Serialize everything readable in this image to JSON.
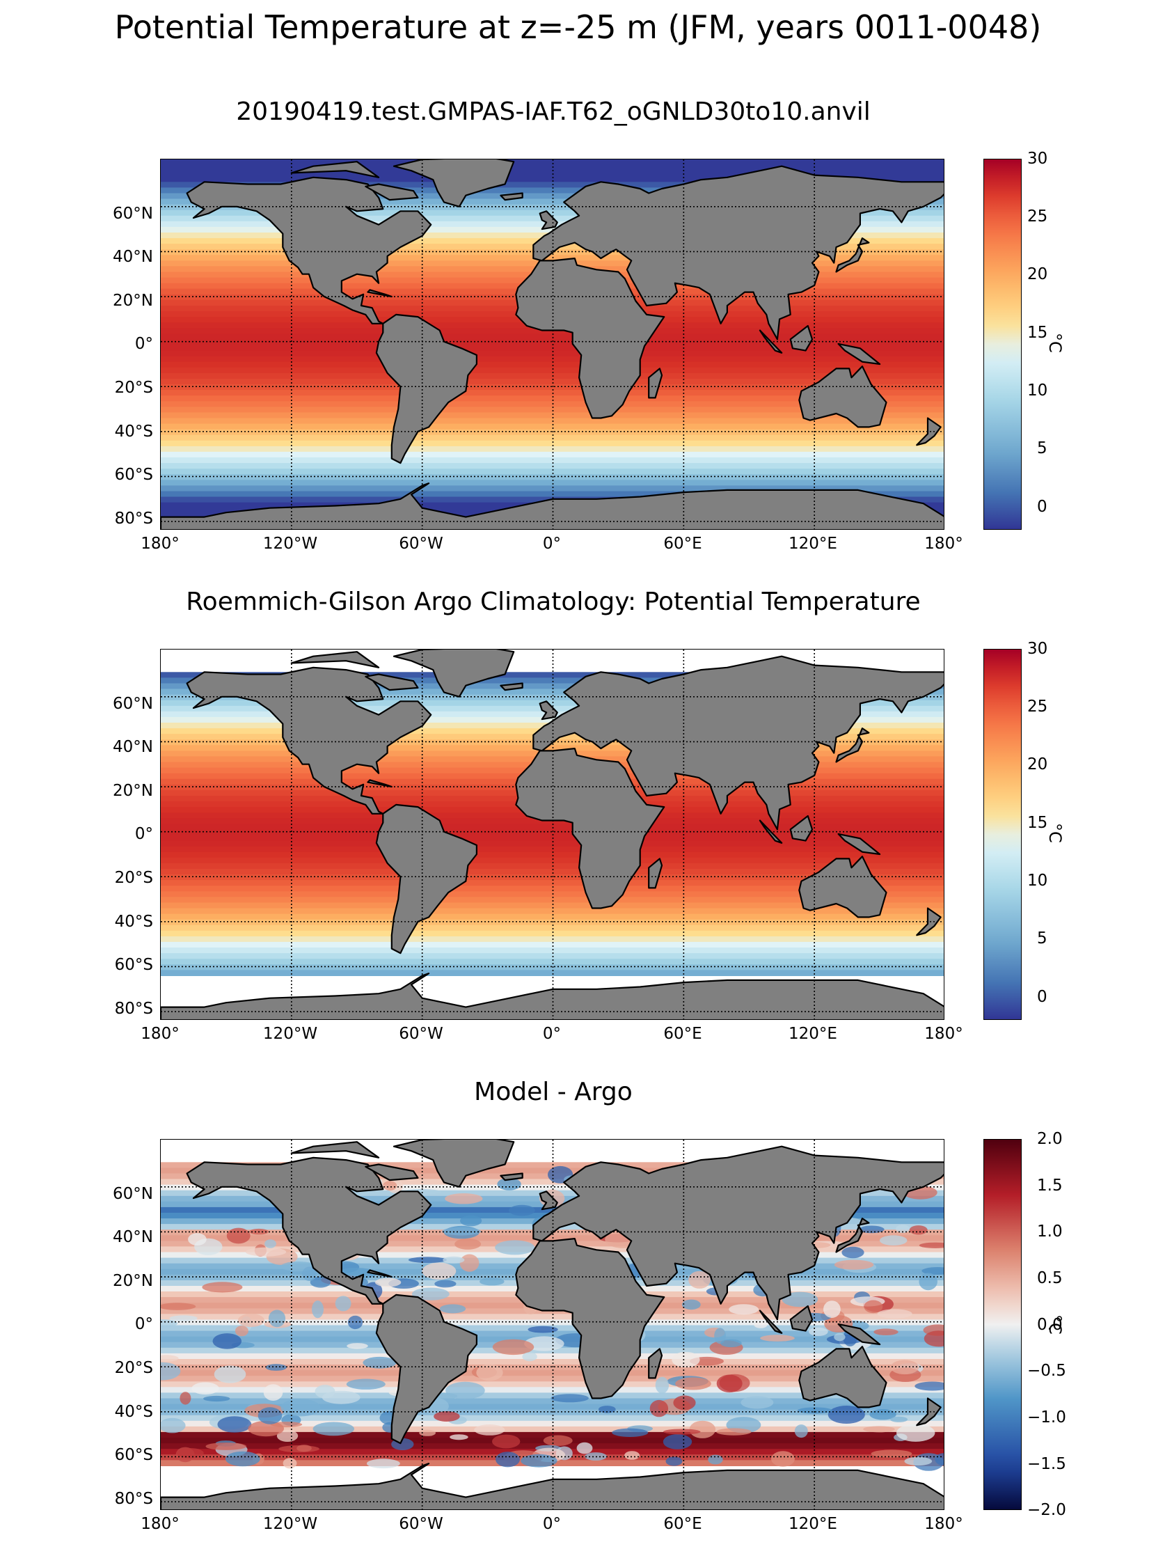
{
  "figure": {
    "suptitle": "Potential Temperature at z=-25 m (JFM, years 0011-0048)"
  },
  "panels": [
    {
      "title": "20190419.test.GMPAS-IAF.T62_oGNLD30to10.anvil",
      "colorbar": {
        "ticks": [
          "30",
          "25",
          "20",
          "15",
          "10",
          "5",
          "0"
        ],
        "label": "°C",
        "min": -2,
        "max": 30
      },
      "field": "model"
    },
    {
      "title": "Roemmich-Gilson Argo Climatology: Potential Temperature",
      "colorbar": {
        "ticks": [
          "30",
          "25",
          "20",
          "15",
          "10",
          "5",
          "0"
        ],
        "label": "°C",
        "min": -2,
        "max": 30
      },
      "field": "obs"
    },
    {
      "title": "Model - Argo",
      "colorbar": {
        "ticks": [
          "2.0",
          "1.5",
          "1.0",
          "0.5",
          "0.0",
          "−0.5",
          "−1.0",
          "−1.5",
          "−2.0"
        ],
        "label": "°C",
        "min": -2,
        "max": 2
      },
      "field": "diff"
    }
  ],
  "axes": {
    "lat_labels": [
      "60°N",
      "40°N",
      "20°N",
      "0°",
      "20°S",
      "40°S",
      "60°S",
      "80°S"
    ],
    "lon_labels": [
      "180°",
      "120°W",
      "60°W",
      "0°",
      "60°E",
      "120°E",
      "180°"
    ]
  },
  "colors": {
    "land": "#808080",
    "missing": "#ffffff"
  }
}
